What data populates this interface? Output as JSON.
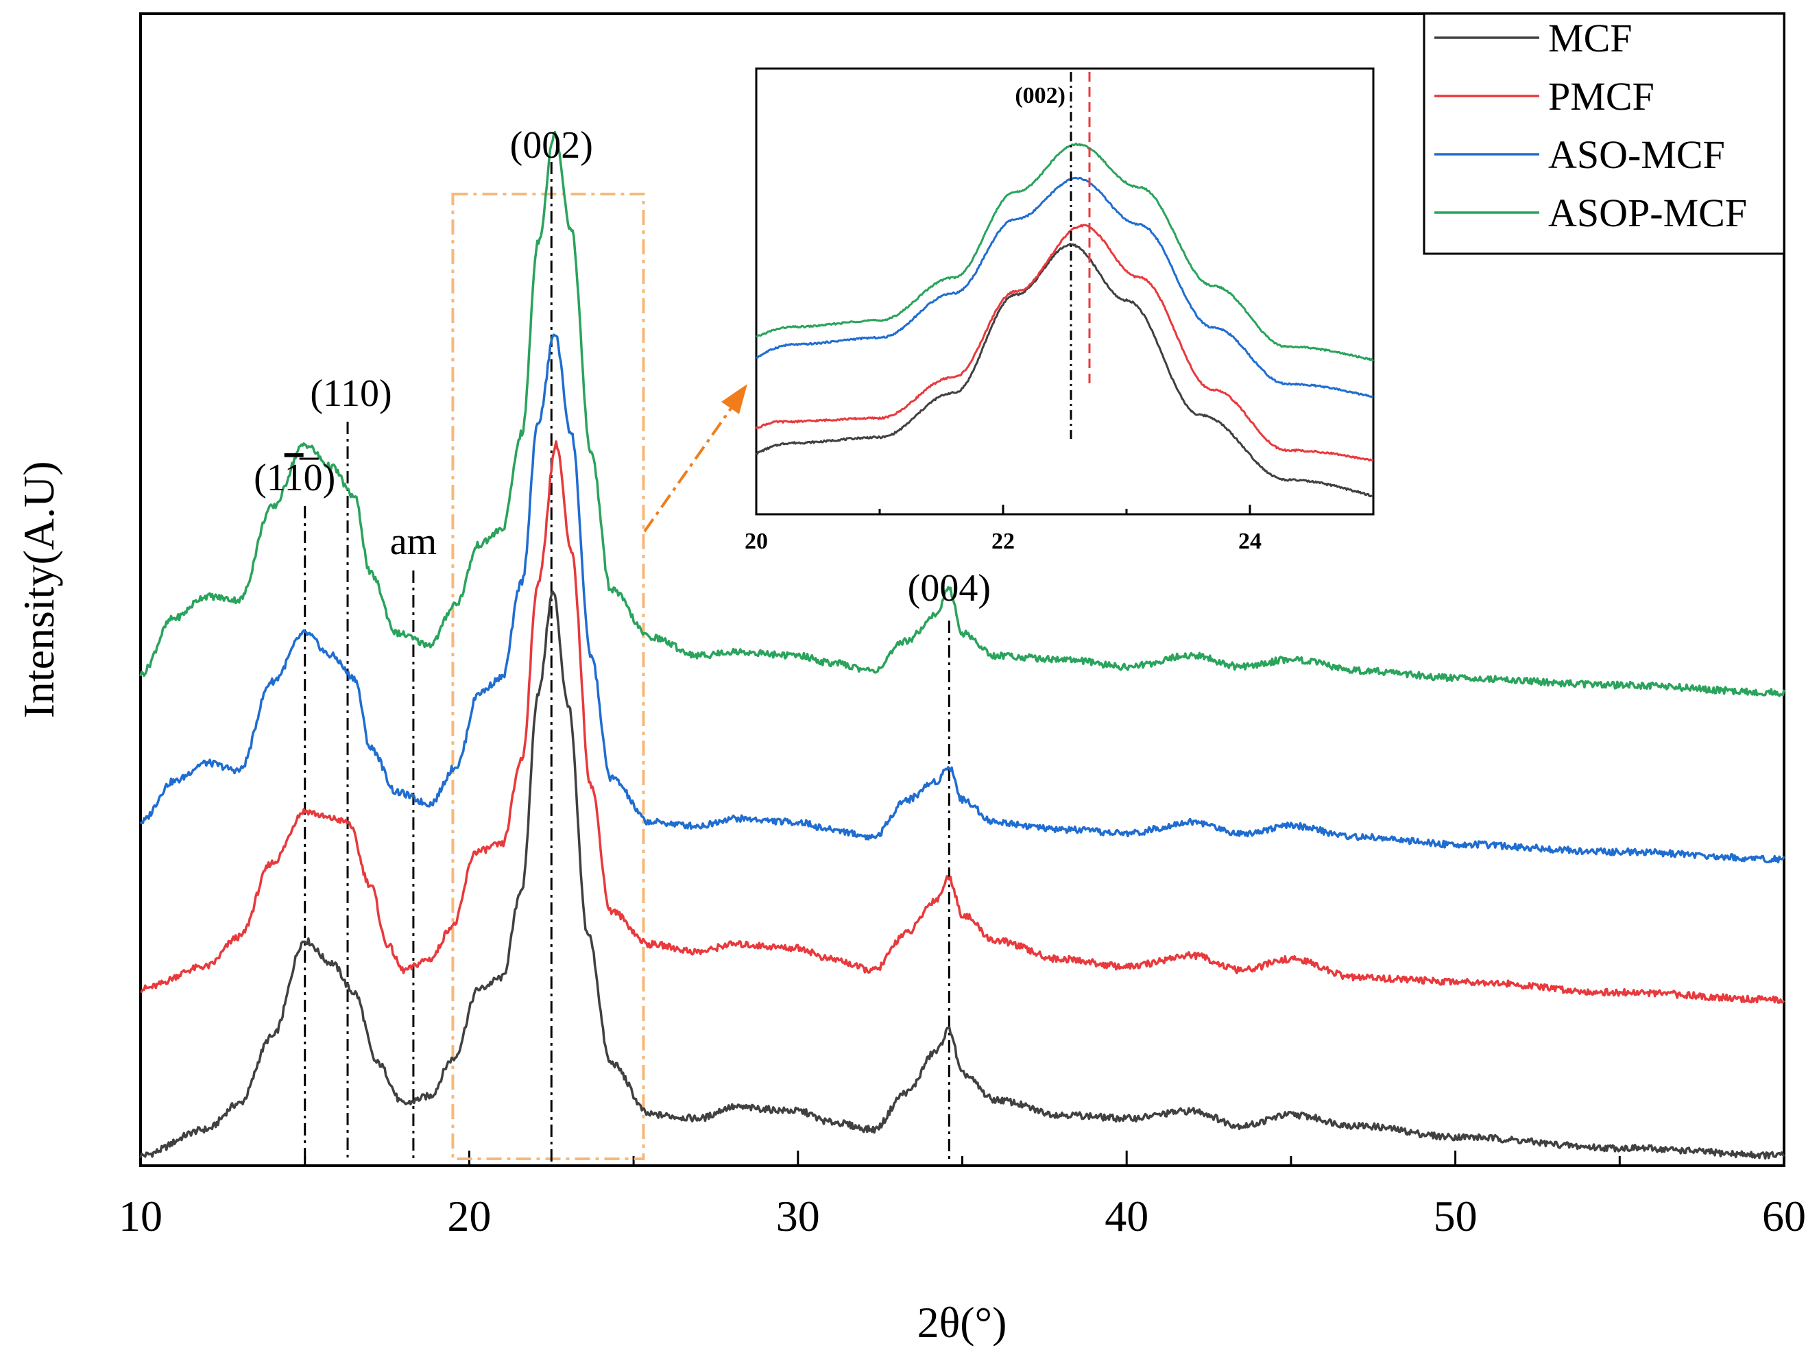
{
  "chart_data": {
    "type": "line",
    "title": "",
    "xlabel": "2θ(°)",
    "ylabel": "Intensity(A.U)",
    "xlim": [
      10,
      60
    ],
    "xticks": [
      "10",
      "20",
      "30",
      "40",
      "50",
      "60"
    ],
    "legend_position": "top-right",
    "series": [
      {
        "name": "MCF",
        "color": "#404040",
        "offset": 0,
        "points": [
          [
            10,
            0.0
          ],
          [
            12,
            0.07
          ],
          [
            13,
            0.14
          ],
          [
            14,
            0.32
          ],
          [
            15,
            0.58
          ],
          [
            15.8,
            0.52
          ],
          [
            16.5,
            0.44
          ],
          [
            17.2,
            0.25
          ],
          [
            18,
            0.14
          ],
          [
            18.8,
            0.16
          ],
          [
            19.5,
            0.26
          ],
          [
            20.3,
            0.45
          ],
          [
            21,
            0.48
          ],
          [
            21.6,
            0.72
          ],
          [
            22.1,
            1.25
          ],
          [
            22.55,
            1.52
          ],
          [
            23,
            1.22
          ],
          [
            23.6,
            0.6
          ],
          [
            24.3,
            0.25
          ],
          [
            25.5,
            0.11
          ],
          [
            27,
            0.1
          ],
          [
            28,
            0.13
          ],
          [
            30,
            0.12
          ],
          [
            31,
            0.09
          ],
          [
            32.3,
            0.07
          ],
          [
            33.3,
            0.17
          ],
          [
            34.2,
            0.28
          ],
          [
            34.6,
            0.34
          ],
          [
            35,
            0.22
          ],
          [
            36,
            0.15
          ],
          [
            38,
            0.11
          ],
          [
            40,
            0.1
          ],
          [
            42,
            0.12
          ],
          [
            43.5,
            0.08
          ],
          [
            45,
            0.11
          ],
          [
            47,
            0.08
          ],
          [
            50,
            0.05
          ],
          [
            55,
            0.02
          ],
          [
            60,
            0.0
          ]
        ]
      },
      {
        "name": "PMCF",
        "color": "#e8393c",
        "offset": 0.45,
        "points": [
          [
            10,
            0.0
          ],
          [
            12,
            0.06
          ],
          [
            13,
            0.14
          ],
          [
            14,
            0.34
          ],
          [
            15,
            0.48
          ],
          [
            15.8,
            0.46
          ],
          [
            16.3,
            0.45
          ],
          [
            17,
            0.28
          ],
          [
            17.5,
            0.12
          ],
          [
            18,
            0.05
          ],
          [
            18.8,
            0.08
          ],
          [
            19.5,
            0.17
          ],
          [
            20.2,
            0.37
          ],
          [
            21,
            0.39
          ],
          [
            21.6,
            0.62
          ],
          [
            22.1,
            1.1
          ],
          [
            22.65,
            1.47
          ],
          [
            23.1,
            1.18
          ],
          [
            23.7,
            0.55
          ],
          [
            24.3,
            0.21
          ],
          [
            25.5,
            0.12
          ],
          [
            27,
            0.1
          ],
          [
            28,
            0.12
          ],
          [
            30,
            0.11
          ],
          [
            31,
            0.08
          ],
          [
            32.3,
            0.05
          ],
          [
            33.3,
            0.15
          ],
          [
            34.2,
            0.24
          ],
          [
            34.6,
            0.3
          ],
          [
            35,
            0.2
          ],
          [
            36,
            0.13
          ],
          [
            38,
            0.08
          ],
          [
            40,
            0.06
          ],
          [
            42,
            0.09
          ],
          [
            43.5,
            0.05
          ],
          [
            45,
            0.08
          ],
          [
            47,
            0.03
          ],
          [
            50,
            0.02
          ],
          [
            55,
            -0.01
          ],
          [
            60,
            -0.03
          ]
        ]
      },
      {
        "name": "ASO-MCF",
        "color": "#1f6dd1",
        "offset": 0.9,
        "points": [
          [
            10,
            0.0
          ],
          [
            11,
            0.11
          ],
          [
            12,
            0.16
          ],
          [
            13,
            0.14
          ],
          [
            14,
            0.38
          ],
          [
            15,
            0.51
          ],
          [
            15.8,
            0.45
          ],
          [
            16.5,
            0.39
          ],
          [
            17,
            0.2
          ],
          [
            17.8,
            0.08
          ],
          [
            18.8,
            0.05
          ],
          [
            19.6,
            0.15
          ],
          [
            20.3,
            0.35
          ],
          [
            21,
            0.39
          ],
          [
            21.6,
            0.65
          ],
          [
            22.1,
            1.08
          ],
          [
            22.6,
            1.32
          ],
          [
            23.1,
            1.05
          ],
          [
            23.7,
            0.45
          ],
          [
            24.3,
            0.12
          ],
          [
            25.5,
            0.0
          ],
          [
            27,
            -0.01
          ],
          [
            28,
            0.01
          ],
          [
            30,
            0.0
          ],
          [
            31,
            -0.02
          ],
          [
            32.3,
            -0.04
          ],
          [
            33.3,
            0.06
          ],
          [
            34.2,
            0.11
          ],
          [
            34.6,
            0.15
          ],
          [
            35,
            0.06
          ],
          [
            36,
            0.0
          ],
          [
            38,
            -0.02
          ],
          [
            40,
            -0.03
          ],
          [
            42,
            0.0
          ],
          [
            43.5,
            -0.03
          ],
          [
            45,
            -0.01
          ],
          [
            47,
            -0.04
          ],
          [
            50,
            -0.06
          ],
          [
            55,
            -0.08
          ],
          [
            60,
            -0.1
          ]
        ]
      },
      {
        "name": "ASOP-MCF",
        "color": "#2aa35c",
        "offset": 1.35,
        "points": [
          [
            10,
            -0.05
          ],
          [
            11,
            0.1
          ],
          [
            12,
            0.16
          ],
          [
            13,
            0.15
          ],
          [
            14,
            0.4
          ],
          [
            15,
            0.57
          ],
          [
            15.8,
            0.51
          ],
          [
            16.5,
            0.43
          ],
          [
            17,
            0.22
          ],
          [
            17.8,
            0.06
          ],
          [
            18.8,
            0.03
          ],
          [
            19.6,
            0.14
          ],
          [
            20.3,
            0.3
          ],
          [
            21,
            0.34
          ],
          [
            21.6,
            0.6
          ],
          [
            22.1,
            1.12
          ],
          [
            22.6,
            1.41
          ],
          [
            23.1,
            1.15
          ],
          [
            23.7,
            0.55
          ],
          [
            24.3,
            0.18
          ],
          [
            25.5,
            0.05
          ],
          [
            27,
            0.0
          ],
          [
            28,
            0.01
          ],
          [
            30,
            0.0
          ],
          [
            31,
            -0.02
          ],
          [
            32.3,
            -0.04
          ],
          [
            33.3,
            0.04
          ],
          [
            34.2,
            0.11
          ],
          [
            34.6,
            0.18
          ],
          [
            35,
            0.06
          ],
          [
            36,
            0.0
          ],
          [
            38,
            -0.01
          ],
          [
            40,
            -0.03
          ],
          [
            42,
            0.0
          ],
          [
            43.5,
            -0.03
          ],
          [
            45,
            -0.01
          ],
          [
            47,
            -0.04
          ],
          [
            50,
            -0.06
          ],
          [
            55,
            -0.08
          ],
          [
            60,
            -0.1
          ]
        ]
      }
    ],
    "peak_annotations": [
      {
        "label_main": "(1",
        "label_bar": "1",
        "label_end": "0)",
        "x": 15.0
      },
      {
        "label": "(110)",
        "x": 16.3
      },
      {
        "label": "am",
        "x": 18.3
      },
      {
        "label": "(002)",
        "x": 22.5
      },
      {
        "label": "(004)",
        "x": 34.6
      }
    ],
    "zoom_box": {
      "xmin": 19.5,
      "xmax": 25.3
    },
    "inset": {
      "xlim": [
        20,
        25
      ],
      "xticks": [
        "20",
        "22",
        "24"
      ],
      "peak_label": "(002)",
      "ref_line_x": 22.55,
      "shift_line_x": 22.7
    }
  }
}
